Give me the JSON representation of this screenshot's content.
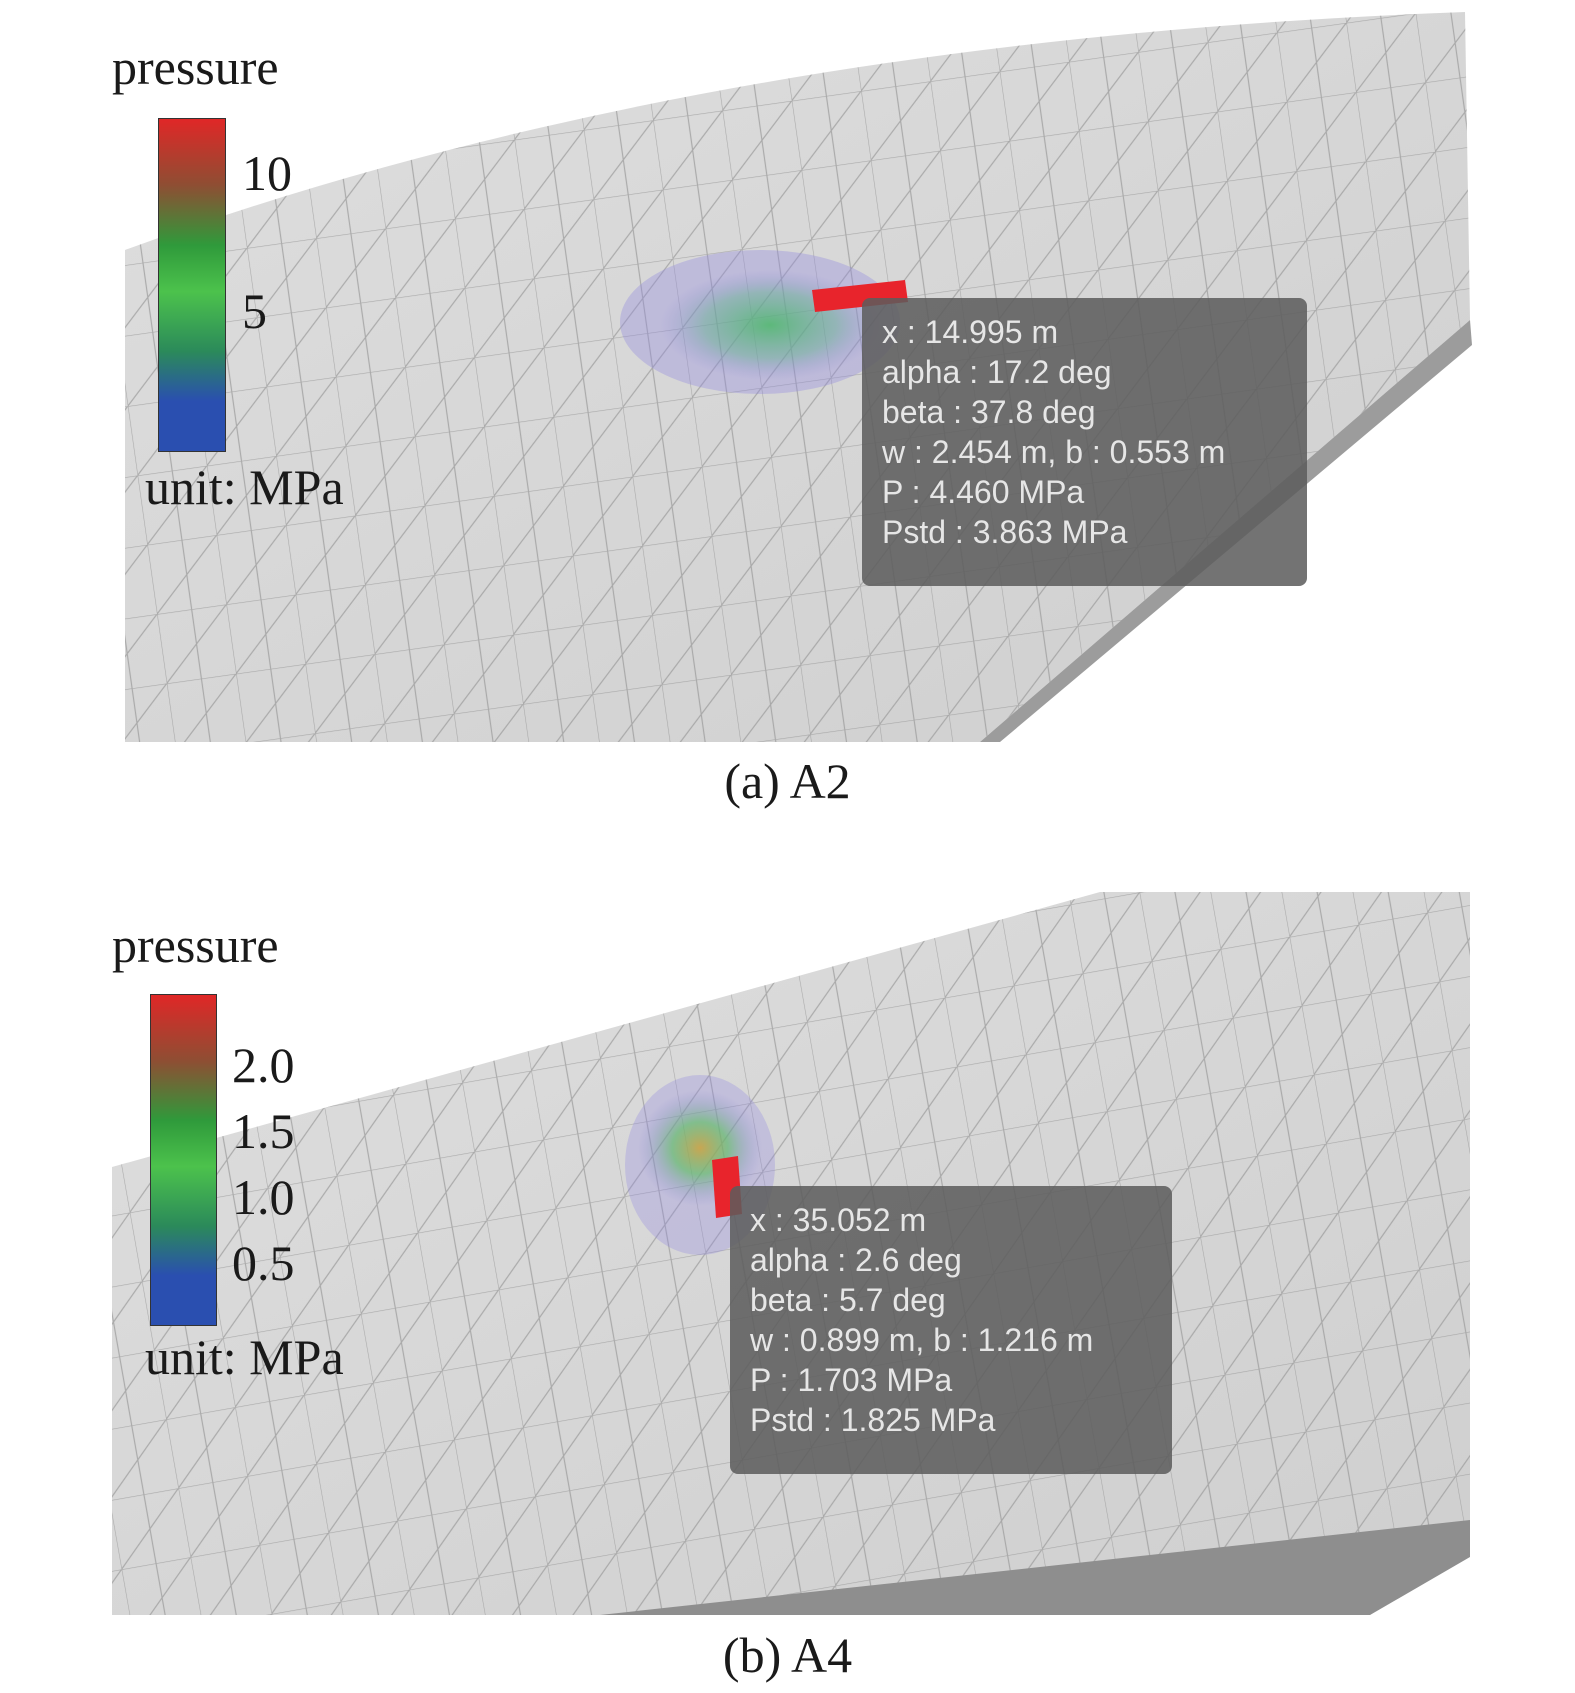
{
  "panels": [
    {
      "id": "a",
      "caption": "(a) A2",
      "legend": {
        "title": "pressure",
        "ticks": [
          "10",
          "5"
        ],
        "unit": "unit: MPa"
      },
      "info": [
        "x : 14.995 m",
        "alpha : 17.2 deg",
        "beta : 37.8 deg",
        "w : 2.454 m, b : 0.553 m",
        "P : 4.460 MPa",
        "Pstd : 3.863 MPa"
      ]
    },
    {
      "id": "b",
      "caption": "(b) A4",
      "legend": {
        "title": "pressure",
        "ticks": [
          "2.0",
          "1.5",
          "1.0",
          "0.5"
        ],
        "unit": "unit: MPa"
      },
      "info": [
        "x : 35.052 m",
        "alpha : 2.6 deg",
        "beta : 5.7 deg",
        "w : 0.899 m, b : 1.216 m",
        "P : 1.703 MPa",
        "Pstd : 1.825 MPa"
      ]
    }
  ],
  "colors": {
    "hull": "#d9d9d9",
    "mesh": "#9a9a9a",
    "patch": "#e8242c",
    "colormap": [
      "#e02727",
      "#8e4e33",
      "#2f9a3b",
      "#4cc24c",
      "#2b8a5a",
      "#2a4fb0"
    ]
  }
}
